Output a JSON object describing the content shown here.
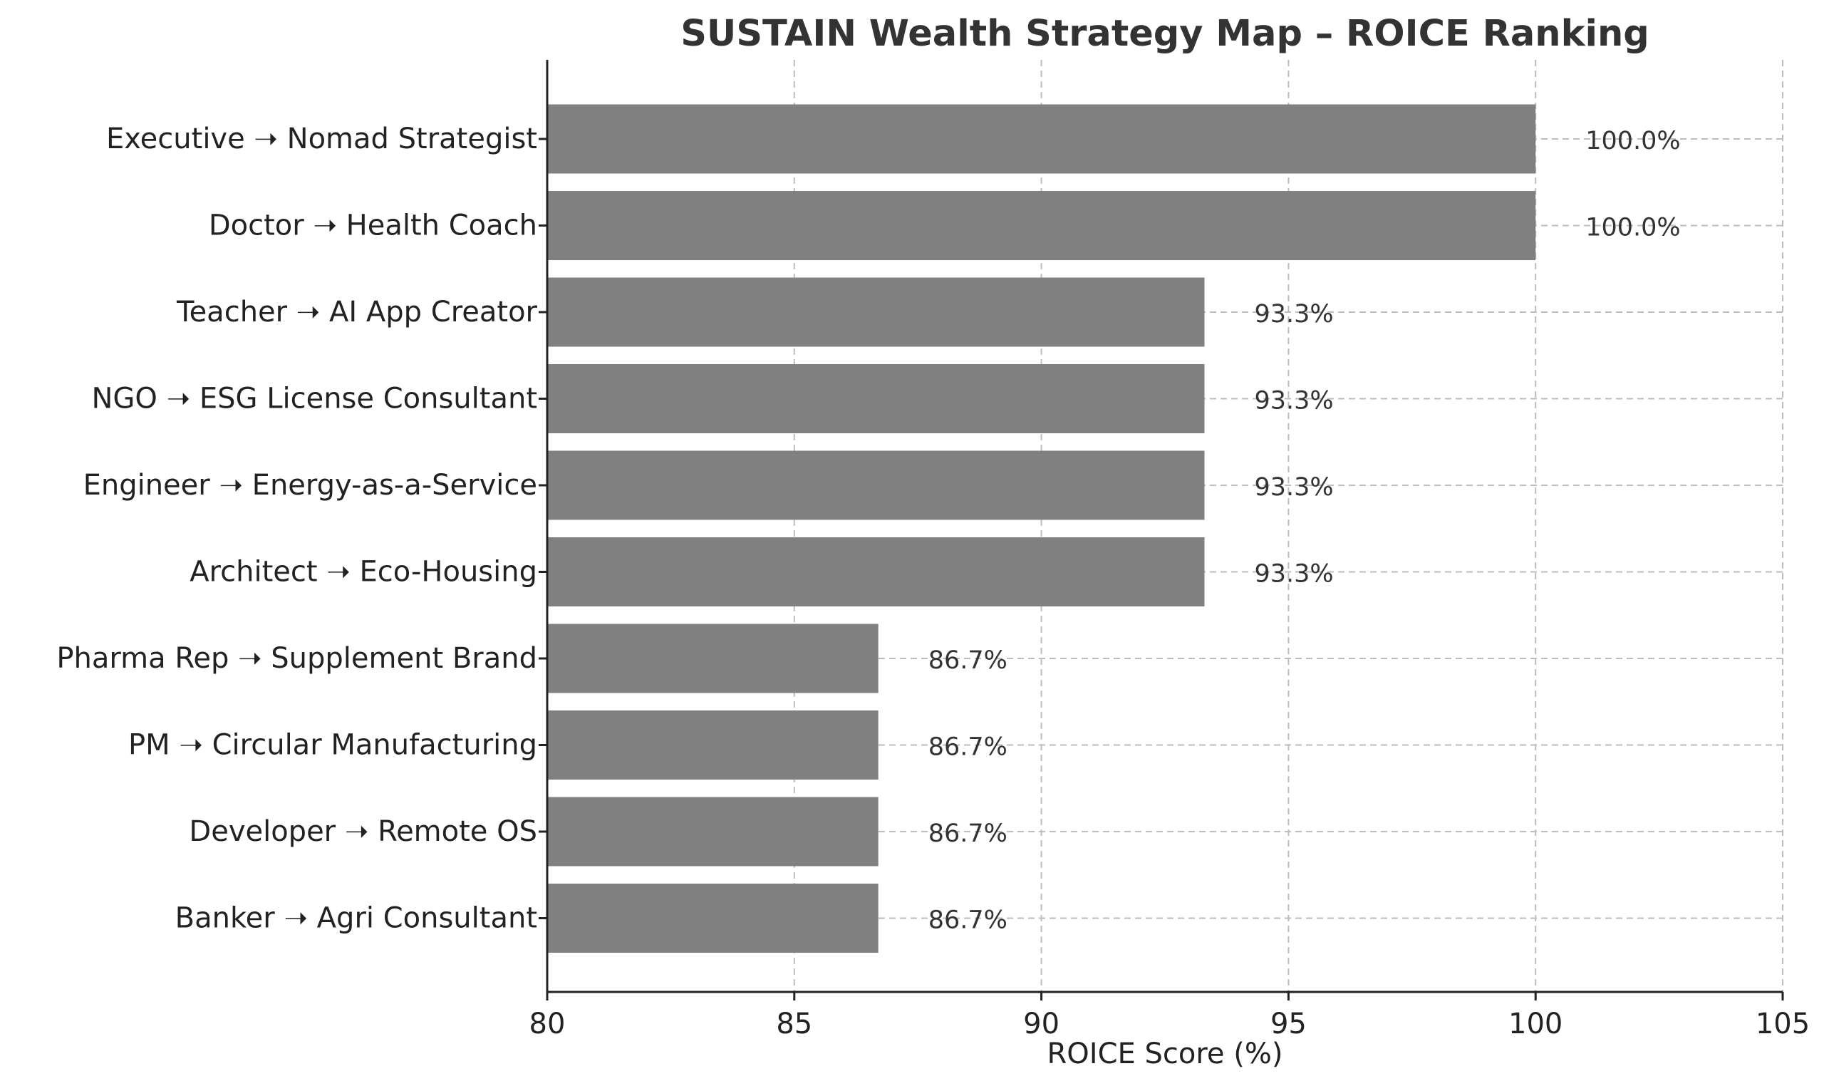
{
  "chart_data": {
    "type": "bar",
    "orientation": "horizontal",
    "title": "SUSTAIN Wealth Strategy Map – ROICE Ranking",
    "xlabel": "ROICE Score (%)",
    "ylabel": "",
    "xlim": [
      80,
      105
    ],
    "xticks": [
      80,
      85,
      90,
      95,
      100,
      105
    ],
    "grid": true,
    "bar_color": "#808080",
    "categories": [
      "Executive ➝ Nomad Strategist",
      "Doctor ➝ Health Coach",
      "Teacher ➝ AI App Creator",
      "NGO ➝ ESG License Consultant",
      "Engineer ➝ Energy-as-a-Service",
      "Architect ➝ Eco-Housing",
      "Pharma Rep ➝ Supplement Brand",
      "PM ➝ Circular Manufacturing",
      "Developer ➝ Remote OS",
      "Banker ➝ Agri Consultant"
    ],
    "values": [
      100.0,
      100.0,
      93.3,
      93.3,
      93.3,
      93.3,
      86.7,
      86.7,
      86.7,
      86.7
    ],
    "data_labels": [
      "100.0%",
      "100.0%",
      "93.3%",
      "93.3%",
      "93.3%",
      "93.3%",
      "86.7%",
      "86.7%",
      "86.7%",
      "86.7%"
    ]
  }
}
